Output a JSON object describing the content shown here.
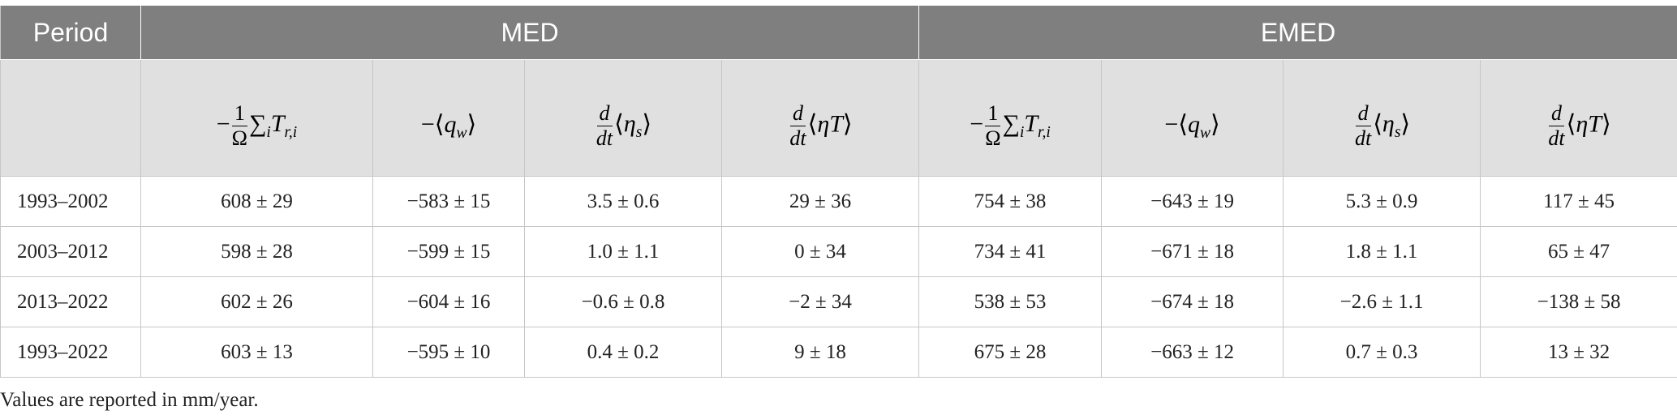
{
  "table": {
    "header": {
      "period": "Period",
      "groups": [
        {
          "name": "MED",
          "columns": [
            [
              {
                "text": "−"
              },
              {
                "num": "1",
                "den": "Ω"
              },
              {
                "text": "∑",
                "sub": "i"
              },
              {
                "text": "T",
                "sub": "r,i",
                "italic": true
              }
            ],
            [
              {
                "text": "−⟨"
              },
              {
                "text": "q",
                "sub": "w",
                "italic": true
              },
              {
                "text": "⟩"
              }
            ],
            [
              {
                "num": "d",
                "den": "dt",
                "italic": true
              },
              {
                "text": "⟨"
              },
              {
                "text": "η",
                "sub": "s",
                "italic": true
              },
              {
                "text": "⟩"
              }
            ],
            [
              {
                "num": "d",
                "den": "dt",
                "italic": true
              },
              {
                "text": "⟨"
              },
              {
                "text": "ηT",
                "italic": true
              },
              {
                "text": "⟩"
              }
            ]
          ]
        },
        {
          "name": "EMED",
          "columns": [
            [
              {
                "text": "−"
              },
              {
                "num": "1",
                "den": "Ω"
              },
              {
                "text": "∑",
                "sub": "i"
              },
              {
                "text": "T",
                "sub": "r,i",
                "italic": true
              }
            ],
            [
              {
                "text": "−⟨"
              },
              {
                "text": "q",
                "sub": "w",
                "italic": true
              },
              {
                "text": "⟩"
              }
            ],
            [
              {
                "num": "d",
                "den": "dt",
                "italic": true
              },
              {
                "text": "⟨"
              },
              {
                "text": "η",
                "sub": "s",
                "italic": true
              },
              {
                "text": "⟩"
              }
            ],
            [
              {
                "num": "d",
                "den": "dt",
                "italic": true
              },
              {
                "text": "⟨"
              },
              {
                "text": "ηT",
                "italic": true
              },
              {
                "text": "⟩"
              }
            ]
          ]
        }
      ]
    },
    "rows": [
      [
        "1993–2002",
        "608 ± 29",
        "−583 ± 15",
        "3.5 ± 0.6",
        "29 ± 36",
        "754 ± 38",
        "−643 ± 19",
        "5.3 ± 0.9",
        "117 ± 45"
      ],
      [
        "2003–2012",
        "598 ± 28",
        "−599 ± 15",
        "1.0 ± 1.1",
        "0 ± 34",
        "734 ± 41",
        "−671 ± 18",
        "1.8 ± 1.1",
        "65 ± 47"
      ],
      [
        "2013–2022",
        "602 ± 26",
        "−604 ± 16",
        "−0.6 ± 0.8",
        "−2 ± 34",
        "538 ± 53",
        "−674 ± 18",
        "−2.6 ± 1.1",
        "−138 ± 58"
      ],
      [
        "1993–2022",
        "603 ± 13",
        "−595 ± 10",
        "0.4 ± 0.2",
        "9 ± 18",
        "675 ± 28",
        "−663 ± 12",
        "0.7 ± 0.3",
        "13 ± 32"
      ]
    ]
  },
  "footnote": "Values are reported in mm/year."
}
